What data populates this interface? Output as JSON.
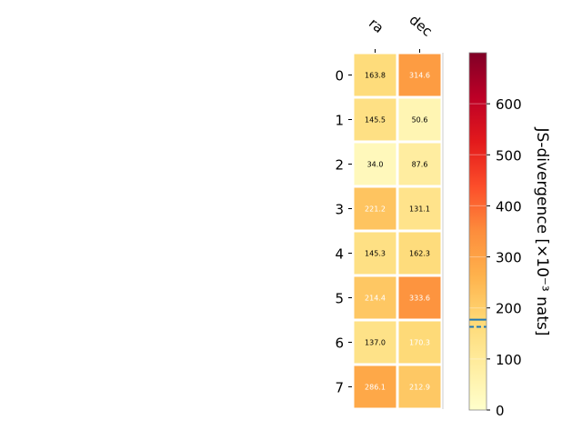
{
  "chart_data": {
    "type": "heatmap",
    "title": "",
    "columns": [
      "ra",
      "dec"
    ],
    "rows": [
      "0",
      "1",
      "2",
      "3",
      "4",
      "5",
      "6",
      "7"
    ],
    "values": [
      [
        163.8,
        314.6
      ],
      [
        145.5,
        50.6
      ],
      [
        34.0,
        87.6
      ],
      [
        221.2,
        131.1
      ],
      [
        145.3,
        162.3
      ],
      [
        214.4,
        333.6
      ],
      [
        137.0,
        170.3
      ],
      [
        286.1,
        212.9
      ]
    ],
    "cell_labels": [
      [
        "163.8",
        "314.6"
      ],
      [
        "145.5",
        "50.6"
      ],
      [
        "34.0",
        "87.6"
      ],
      [
        "221.2",
        "131.1"
      ],
      [
        "145.3",
        "162.3"
      ],
      [
        "214.4",
        "333.6"
      ],
      [
        "137.0",
        "170.3"
      ],
      [
        "286.1",
        "212.9"
      ]
    ],
    "colorbar": {
      "label": "JS-divergence [×10⁻³ nats]",
      "range": [
        0,
        700
      ],
      "ticks": [
        0,
        100,
        200,
        300,
        400,
        500,
        600
      ],
      "tick_labels": [
        "0",
        "100",
        "200",
        "300",
        "400",
        "500",
        "600"
      ],
      "markers": [
        {
          "style": "solid",
          "value": 177
        },
        {
          "style": "dashed",
          "value": 163
        }
      ],
      "colormap": "YlOrRd",
      "marker_color": "#1f77b4"
    },
    "grid": false,
    "legend": "none"
  }
}
